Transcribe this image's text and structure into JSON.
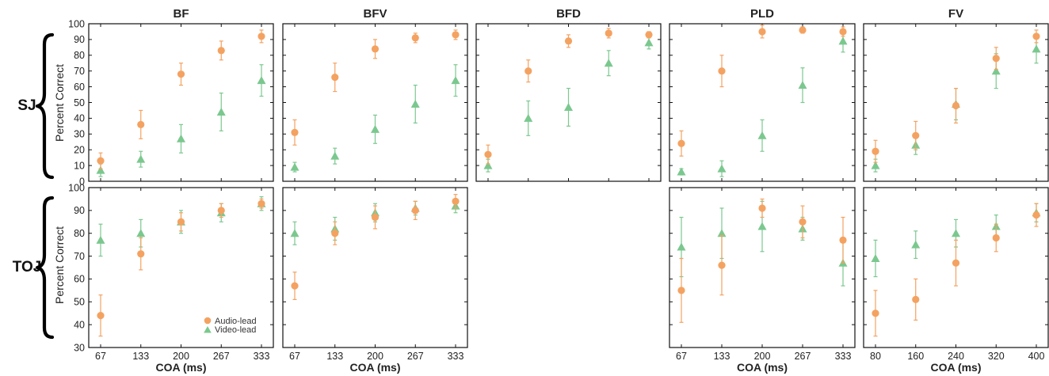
{
  "colors": {
    "audio": "#F4A261",
    "video": "#7BC88F"
  },
  "row_labels": [
    "SJ",
    "TOJ"
  ],
  "y_axis_label": "Percent Correct",
  "x_axis_label": "COA (ms)",
  "legend": {
    "audio": "Audio-lead",
    "video": "Video-lead"
  },
  "chart_data": [
    {
      "type": "scatter",
      "row": "SJ",
      "title": "BF",
      "x": [
        67,
        133,
        200,
        267,
        333
      ],
      "xlabel": "",
      "ylabel": "Percent Correct",
      "ylim": [
        0,
        100
      ],
      "series": [
        {
          "name": "Audio-lead",
          "marker": "circle",
          "values": [
            13,
            36,
            68,
            83,
            92
          ],
          "err": [
            5,
            9,
            7,
            6,
            4
          ]
        },
        {
          "name": "Video-lead",
          "marker": "triangle",
          "values": [
            7,
            14,
            27,
            44,
            64
          ],
          "err": [
            4,
            5,
            9,
            12,
            10
          ]
        }
      ]
    },
    {
      "type": "scatter",
      "row": "SJ",
      "title": "BFV",
      "x": [
        67,
        133,
        200,
        267,
        333
      ],
      "xlabel": "",
      "ylabel": "",
      "ylim": [
        0,
        100
      ],
      "series": [
        {
          "name": "Audio-lead",
          "marker": "circle",
          "values": [
            31,
            66,
            84,
            91,
            93
          ],
          "err": [
            8,
            9,
            6,
            3,
            3
          ]
        },
        {
          "name": "Video-lead",
          "marker": "triangle",
          "values": [
            9,
            16,
            33,
            49,
            64
          ],
          "err": [
            3,
            5,
            9,
            12,
            10
          ]
        }
      ]
    },
    {
      "type": "scatter",
      "row": "SJ",
      "title": "BFD",
      "x": [
        67,
        133,
        200,
        267,
        333
      ],
      "xlabel": "",
      "ylabel": "",
      "ylim": [
        0,
        100
      ],
      "series": [
        {
          "name": "Audio-lead",
          "marker": "circle",
          "values": [
            17,
            70,
            89,
            94,
            93
          ],
          "err": [
            6,
            7,
            4,
            3,
            2
          ]
        },
        {
          "name": "Video-lead",
          "marker": "triangle",
          "values": [
            10,
            40,
            47,
            75,
            88
          ],
          "err": [
            4,
            11,
            12,
            8,
            4
          ]
        }
      ]
    },
    {
      "type": "scatter",
      "row": "SJ",
      "title": "PLD",
      "x": [
        67,
        133,
        200,
        267,
        333
      ],
      "xlabel": "",
      "ylabel": "",
      "ylim": [
        0,
        100
      ],
      "series": [
        {
          "name": "Audio-lead",
          "marker": "circle",
          "values": [
            24,
            70,
            95,
            96,
            95
          ],
          "err": [
            8,
            10,
            4,
            2,
            3
          ]
        },
        {
          "name": "Video-lead",
          "marker": "triangle",
          "values": [
            6,
            8,
            29,
            61,
            89
          ],
          "err": [
            2,
            5,
            10,
            11,
            7
          ]
        }
      ]
    },
    {
      "type": "scatter",
      "row": "SJ",
      "title": "FV",
      "x": [
        80,
        160,
        240,
        320,
        400
      ],
      "xlabel": "",
      "ylabel": "",
      "ylim": [
        0,
        100
      ],
      "series": [
        {
          "name": "Audio-lead",
          "marker": "circle",
          "values": [
            19,
            29,
            48,
            78,
            92
          ],
          "err": [
            7,
            9,
            11,
            7,
            4
          ]
        },
        {
          "name": "Video-lead",
          "marker": "triangle",
          "values": [
            10,
            23,
            49,
            70,
            84
          ],
          "err": [
            4,
            6,
            10,
            11,
            9
          ]
        }
      ]
    },
    {
      "type": "scatter",
      "row": "TOJ",
      "title": "",
      "panel": "BF",
      "x": [
        67,
        133,
        200,
        267,
        333
      ],
      "xlabel": "COA (ms)",
      "ylabel": "Percent Correct",
      "ylim": [
        30,
        100
      ],
      "legend": "lower-right",
      "series": [
        {
          "name": "Audio-lead",
          "marker": "circle",
          "values": [
            44,
            71,
            85,
            90,
            93
          ],
          "err": [
            9,
            7,
            4,
            3,
            2
          ]
        },
        {
          "name": "Video-lead",
          "marker": "triangle",
          "values": [
            77,
            80,
            85,
            89,
            93
          ],
          "err": [
            7,
            6,
            5,
            4,
            3
          ]
        }
      ]
    },
    {
      "type": "scatter",
      "row": "TOJ",
      "title": "",
      "panel": "BFV",
      "x": [
        67,
        133,
        200,
        267,
        333
      ],
      "xlabel": "COA (ms)",
      "ylabel": "",
      "ylim": [
        30,
        100
      ],
      "series": [
        {
          "name": "Audio-lead",
          "marker": "circle",
          "values": [
            57,
            80,
            87,
            90,
            94
          ],
          "err": [
            6,
            5,
            5,
            4,
            3
          ]
        },
        {
          "name": "Video-lead",
          "marker": "triangle",
          "values": [
            80,
            82,
            89,
            91,
            92
          ],
          "err": [
            5,
            5,
            4,
            3,
            3
          ]
        }
      ]
    },
    {
      "type": "scatter",
      "row": "TOJ",
      "title": "",
      "panel": "PLD",
      "x": [
        67,
        133,
        200,
        267,
        333
      ],
      "xlabel": "COA (ms)",
      "ylabel": "",
      "ylim": [
        30,
        100
      ],
      "series": [
        {
          "name": "Audio-lead",
          "marker": "circle",
          "values": [
            55,
            66,
            91,
            85,
            77
          ],
          "err": [
            14,
            13,
            4,
            7,
            10
          ]
        },
        {
          "name": "Video-lead",
          "marker": "triangle",
          "values": [
            74,
            80,
            83,
            82,
            67
          ],
          "err": [
            13,
            11,
            11,
            5,
            10
          ]
        }
      ]
    },
    {
      "type": "scatter",
      "row": "TOJ",
      "title": "",
      "panel": "FV",
      "x": [
        80,
        160,
        240,
        320,
        400
      ],
      "xlabel": "COA (ms)",
      "ylabel": "",
      "ylim": [
        30,
        100
      ],
      "series": [
        {
          "name": "Audio-lead",
          "marker": "circle",
          "values": [
            45,
            51,
            67,
            78,
            88
          ],
          "err": [
            10,
            9,
            10,
            6,
            5
          ]
        },
        {
          "name": "Video-lead",
          "marker": "triangle",
          "values": [
            69,
            75,
            80,
            83,
            89
          ],
          "err": [
            8,
            6,
            6,
            5,
            4
          ]
        }
      ]
    }
  ]
}
